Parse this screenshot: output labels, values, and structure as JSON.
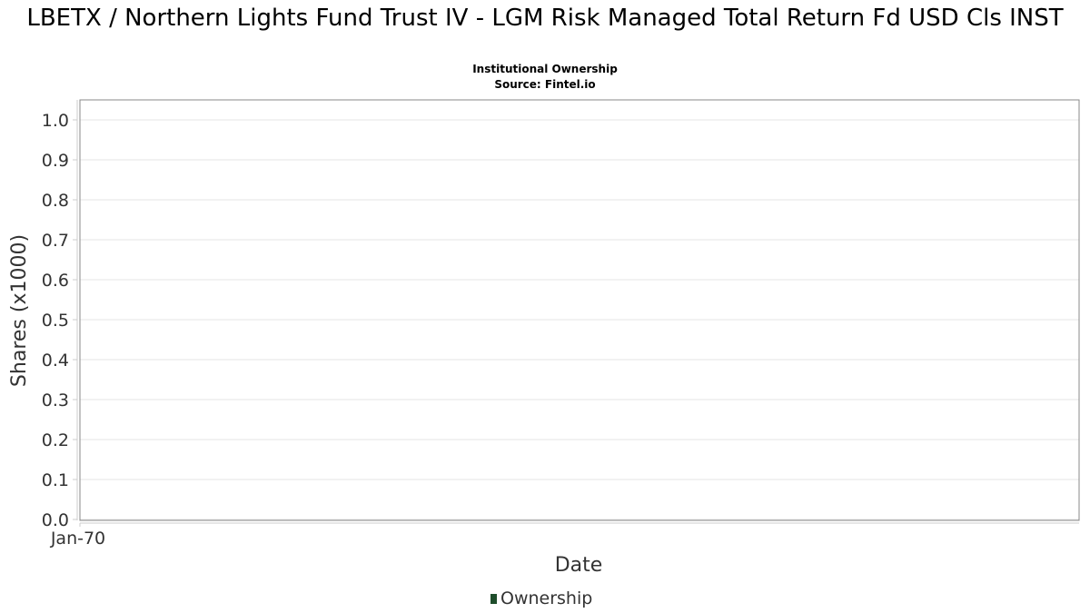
{
  "title": "LBETX / Northern Lights Fund Trust IV - LGM Risk Managed Total Return Fd USD Cls INST",
  "subtitle": "Institutional Ownership",
  "source": "Source: Fintel.io",
  "chart_data": {
    "type": "line",
    "title": "LBETX / Northern Lights Fund Trust IV - LGM Risk Managed Total Return Fd USD Cls INST",
    "xlabel": "Date",
    "ylabel": "Shares (x1000)",
    "ylim": [
      0,
      1.0
    ],
    "y_ticks": [
      "0.0",
      "0.1",
      "0.2",
      "0.3",
      "0.4",
      "0.5",
      "0.6",
      "0.7",
      "0.8",
      "0.9",
      "1.0"
    ],
    "x_ticks": [
      "Jan-70"
    ],
    "grid": true,
    "legend_position": "bottom-center",
    "series": [
      {
        "name": "Ownership",
        "color": "#1e4d2b",
        "values": []
      }
    ]
  }
}
